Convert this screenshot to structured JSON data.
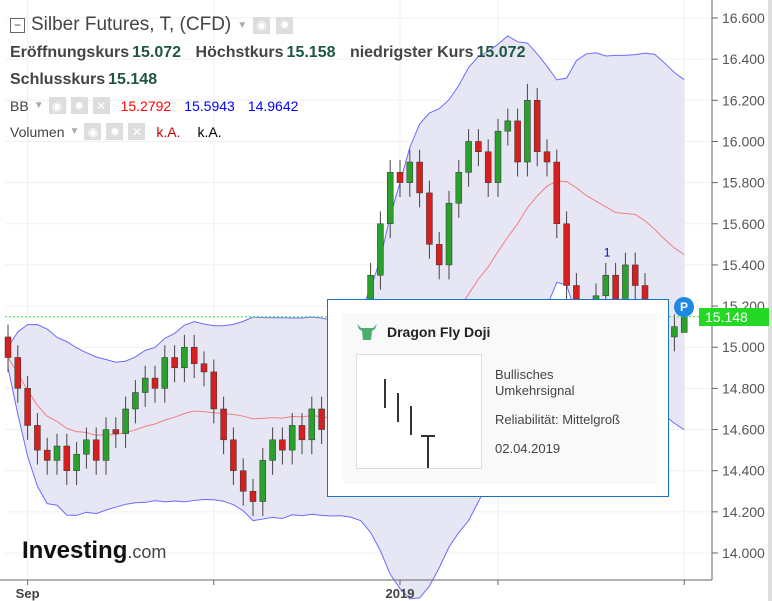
{
  "header": {
    "title": "Silber Futures, T, (CFD)",
    "open_label": "Eröffnungskurs",
    "open": "15.072",
    "high_label": "Höchstkurs",
    "high": "15.158",
    "low_label": "niedrigster Kurs",
    "low": "15.072",
    "close_label": "Schlusskurs",
    "close": "15.148"
  },
  "bb": {
    "label": "BB",
    "mid": "15.2792",
    "upper": "15.5943",
    "lower": "14.9642",
    "mid_color": "#ff0000",
    "band_color": "#0000ff"
  },
  "volume": {
    "label": "Volumen",
    "v1": "k.A.",
    "v2": "k.A."
  },
  "icons": {
    "eye": "eye-icon",
    "gear": "gear-icon",
    "close": "close-icon"
  },
  "tooltip": {
    "title": "Dragon Fly Doji",
    "line1": "Bullisches",
    "line2": "Umkehrsignal",
    "reliability": "Reliabilität: Mittelgroß",
    "date": "02.04.2019",
    "icon": "bull-icon",
    "icon_color": "#4caf6e"
  },
  "price_tag": "15.148",
  "badge": "P",
  "pattern_marker": "1",
  "logo": {
    "main": "Investing",
    "suffix": ".com"
  },
  "chart_data": {
    "type": "candlestick",
    "ylim": [
      13.9,
      16.65
    ],
    "yticks": [
      "16.600",
      "16.400",
      "16.200",
      "16.000",
      "15.800",
      "15.600",
      "15.400",
      "15.200",
      "15.000",
      "14.800",
      "14.600",
      "14.400",
      "14.200",
      "14.000"
    ],
    "xticks": [
      {
        "label": "Sep",
        "index": 2
      },
      {
        "label": "",
        "index": 21
      },
      {
        "label": "2019",
        "index": 40
      },
      {
        "label": "",
        "index": 50
      },
      {
        "label": "",
        "index": 69
      }
    ],
    "up_color": "#2ca02c",
    "down_color": "#d62020",
    "last_price": 15.148,
    "bollinger_period": 20,
    "open": [
      15.05,
      14.95,
      14.8,
      14.62,
      14.5,
      14.45,
      14.52,
      14.4,
      14.48,
      14.55,
      14.45,
      14.6,
      14.58,
      14.7,
      14.78,
      14.85,
      14.8,
      14.95,
      14.9,
      15.0,
      14.92,
      14.88,
      14.7,
      14.55,
      14.4,
      14.3,
      14.25,
      14.45,
      14.55,
      14.5,
      14.62,
      14.55,
      14.7,
      14.6,
      14.65,
      14.8,
      14.95,
      15.1,
      15.35,
      15.6,
      15.85,
      15.8,
      15.9,
      15.75,
      15.5,
      15.4,
      15.7,
      15.85,
      16.0,
      15.95,
      15.8,
      16.05,
      16.1,
      15.9,
      16.2,
      15.95,
      15.9,
      15.6,
      15.3,
      15.0,
      15.1,
      15.25,
      15.35,
      15.2,
      15.4,
      15.3,
      15.1,
      15.0,
      15.05,
      15.072
    ],
    "high": [
      15.11,
      15.01,
      14.86,
      14.68,
      14.56,
      14.58,
      14.58,
      14.54,
      14.61,
      14.61,
      14.66,
      14.66,
      14.76,
      14.84,
      14.91,
      14.91,
      15.01,
      15.01,
      15.06,
      15.06,
      14.98,
      14.94,
      14.76,
      14.61,
      14.46,
      14.36,
      14.51,
      14.61,
      14.61,
      14.68,
      14.68,
      14.76,
      14.76,
      14.71,
      14.86,
      15.01,
      15.16,
      15.41,
      15.66,
      15.91,
      15.91,
      15.96,
      15.96,
      15.81,
      15.56,
      15.76,
      15.91,
      16.06,
      16.06,
      16.01,
      16.11,
      16.16,
      16.16,
      16.28,
      16.26,
      16.01,
      15.96,
      15.66,
      15.36,
      15.16,
      15.31,
      15.41,
      15.41,
      15.46,
      15.46,
      15.36,
      15.16,
      15.11,
      15.16,
      15.158
    ],
    "low": [
      14.88,
      14.73,
      14.55,
      14.43,
      14.38,
      14.38,
      14.33,
      14.33,
      14.41,
      14.38,
      14.38,
      14.51,
      14.51,
      14.63,
      14.71,
      14.73,
      14.73,
      14.83,
      14.83,
      14.85,
      14.81,
      14.63,
      14.48,
      14.33,
      14.23,
      14.18,
      14.18,
      14.38,
      14.43,
      14.43,
      14.48,
      14.48,
      14.53,
      14.53,
      14.58,
      14.73,
      14.88,
      15.03,
      15.28,
      15.53,
      15.73,
      15.73,
      15.68,
      15.43,
      15.33,
      15.33,
      15.63,
      15.78,
      15.88,
      15.73,
      15.73,
      15.98,
      15.83,
      15.83,
      15.88,
      15.83,
      15.53,
      15.23,
      14.93,
      14.93,
      15.03,
      15.18,
      15.13,
      15.13,
      15.23,
      15.03,
      14.93,
      14.93,
      14.98,
      15.072
    ],
    "close": [
      14.95,
      14.8,
      14.62,
      14.5,
      14.45,
      14.52,
      14.4,
      14.48,
      14.55,
      14.45,
      14.6,
      14.58,
      14.7,
      14.78,
      14.85,
      14.8,
      14.95,
      14.9,
      15.0,
      14.92,
      14.88,
      14.7,
      14.55,
      14.4,
      14.3,
      14.25,
      14.45,
      14.55,
      14.5,
      14.62,
      14.55,
      14.7,
      14.6,
      14.65,
      14.8,
      14.95,
      15.1,
      15.35,
      15.6,
      15.85,
      15.8,
      15.9,
      15.75,
      15.5,
      15.4,
      15.7,
      15.85,
      16.0,
      15.95,
      15.8,
      16.05,
      16.1,
      15.9,
      16.2,
      15.95,
      15.9,
      15.6,
      15.3,
      15.0,
      15.1,
      15.25,
      15.35,
      15.2,
      15.4,
      15.3,
      15.1,
      15.0,
      15.05,
      15.1,
      15.148
    ]
  }
}
